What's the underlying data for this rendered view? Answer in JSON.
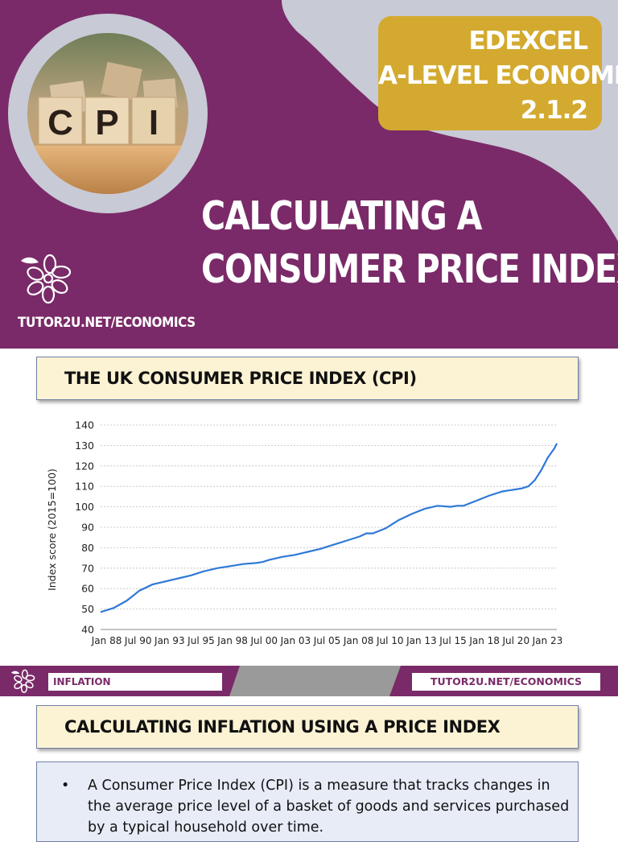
{
  "hero": {
    "badge_lines": [
      "EDEXCEL",
      "A-LEVEL ECONOMICS",
      "2.1.2"
    ],
    "photo_letters": [
      "C",
      "P",
      "I"
    ],
    "title_lines": [
      "CALCULATING A",
      "CONSUMER PRICE INDEX"
    ],
    "site": "TUTOR2U.NET/ECONOMICS"
  },
  "slide2": {
    "title": "THE UK CONSUMER PRICE INDEX (CPI)"
  },
  "chart_data": {
    "type": "line",
    "title": "",
    "xlabel": "",
    "ylabel": "Index score (2015=100)",
    "ylim": [
      40,
      140
    ],
    "yticks": [
      40,
      50,
      60,
      70,
      80,
      90,
      100,
      110,
      120,
      130,
      140
    ],
    "xtick_labels": [
      "Jan 88",
      "Jul 90",
      "Jan 93",
      "Jul 95",
      "Jan 98",
      "Jul 00",
      "Jan 03",
      "Jul 05",
      "Jan 08",
      "Jul 10",
      "Jan 13",
      "Jul 15",
      "Jan 18",
      "Jul 20",
      "Jan 23"
    ],
    "grid": true,
    "legend": "none",
    "series": [
      {
        "color": "#2f79d6",
        "x": [
          1988.0,
          1989.0,
          1990.0,
          1990.5,
          1991.0,
          1992.0,
          1993.0,
          1994.0,
          1995.0,
          1995.5,
          1996.0,
          1997.0,
          1998.0,
          1999.0,
          2000.0,
          2000.5,
          2001.0,
          2002.0,
          2003.0,
          2004.0,
          2005.0,
          2005.5,
          2006.0,
          2007.0,
          2008.0,
          2008.5,
          2009.0,
          2010.0,
          2010.5,
          2011.0,
          2012.0,
          2013.0,
          2014.0,
          2015.0,
          2015.5,
          2016.0,
          2017.0,
          2018.0,
          2019.0,
          2020.0,
          2020.5,
          2021.0,
          2021.5,
          2022.0,
          2022.5,
          2023.0,
          2023.2
        ],
        "values": [
          48.5,
          50.5,
          54,
          56.5,
          59,
          62,
          63.5,
          65,
          66.5,
          67.5,
          68.5,
          70,
          71,
          72,
          72.5,
          73,
          74,
          75.5,
          76.5,
          78,
          79.5,
          80.5,
          81.5,
          83.5,
          85.5,
          87,
          87,
          89.5,
          91.5,
          93.5,
          96.5,
          99,
          100.5,
          100,
          100.5,
          100.5,
          103,
          105.5,
          107.5,
          108.5,
          109,
          110,
          113,
          118,
          124,
          128.5,
          131
        ]
      }
    ]
  },
  "footer": {
    "label": "INFLATION",
    "link": "TUTOR2U.NET/ECONOMICS"
  },
  "slide3": {
    "title": "CALCULATING INFLATION USING A PRICE INDEX",
    "bullet": "A Consumer Price Index (CPI) is a measure that tracks changes in the average price level of a basket of goods and services purchased by a typical household over time."
  }
}
